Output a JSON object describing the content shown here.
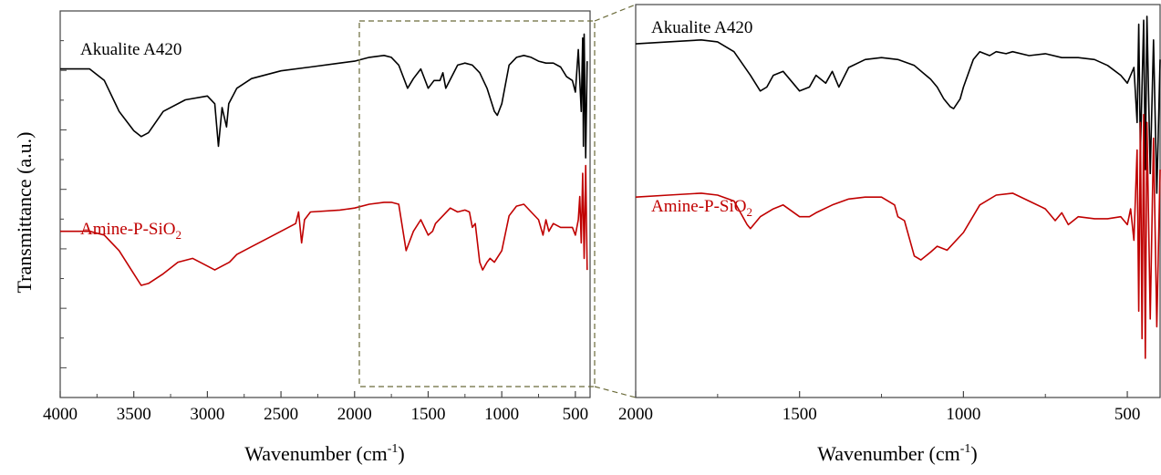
{
  "chart_data": [
    {
      "type": "line",
      "ylabel": "Transmittance (a.u.)",
      "xlabel": "Wavenumber (cm",
      "xlabel_sup": "-1",
      "xlabel_end": ")",
      "xlim": [
        4000,
        400
      ],
      "xticks": [
        "4000",
        "3500",
        "3000",
        "2500",
        "2000",
        "1500",
        "1000",
        "500"
      ],
      "xtick_values": [
        4000,
        3500,
        3000,
        2500,
        2000,
        1500,
        1000,
        500
      ],
      "ylim": [
        0,
        100
      ],
      "grid": false,
      "series": [
        {
          "name": "Akualite A420",
          "color": "#000000",
          "x": [
            4000,
            3800,
            3700,
            3600,
            3500,
            3450,
            3400,
            3300,
            3150,
            3000,
            2950,
            2925,
            2900,
            2870,
            2855,
            2800,
            2700,
            2500,
            2300,
            2100,
            2000,
            1900,
            1800,
            1750,
            1700,
            1640,
            1600,
            1550,
            1500,
            1460,
            1420,
            1400,
            1380,
            1300,
            1250,
            1200,
            1150,
            1100,
            1050,
            1030,
            1000,
            950,
            900,
            850,
            800,
            750,
            700,
            650,
            600,
            560,
            520,
            500,
            480,
            460,
            450,
            445,
            440,
            430,
            420
          ],
          "y": [
            85,
            85,
            82,
            74,
            69,
            67.5,
            68.5,
            74,
            77,
            78,
            76,
            65,
            75,
            70,
            76,
            80,
            82.5,
            84.5,
            85.5,
            86.5,
            87,
            88,
            88.5,
            88,
            86,
            80,
            82.5,
            85,
            80,
            82,
            82,
            84,
            80,
            86,
            86.5,
            86,
            84,
            80,
            74,
            73,
            76,
            86,
            88,
            88.5,
            88,
            87,
            86.5,
            86.5,
            85.5,
            83,
            82,
            79,
            90,
            74,
            93,
            65,
            94,
            62,
            87
          ]
        },
        {
          "name": "Amine-P-SiO2",
          "name_prefix": "Amine-P-SiO",
          "name_sub": "2",
          "color": "#c00000",
          "x": [
            4000,
            3800,
            3700,
            3600,
            3500,
            3450,
            3400,
            3300,
            3200,
            3100,
            3000,
            2950,
            2900,
            2850,
            2800,
            2700,
            2600,
            2500,
            2400,
            2380,
            2360,
            2340,
            2300,
            2100,
            2000,
            1900,
            1800,
            1750,
            1700,
            1650,
            1600,
            1550,
            1500,
            1470,
            1450,
            1400,
            1350,
            1300,
            1250,
            1220,
            1200,
            1180,
            1150,
            1130,
            1100,
            1080,
            1050,
            1000,
            950,
            900,
            850,
            800,
            750,
            720,
            700,
            680,
            650,
            600,
            560,
            520,
            500,
            480,
            470,
            460,
            450,
            440,
            430,
            420
          ],
          "y": [
            43,
            43,
            42,
            38,
            32,
            29,
            29.5,
            32,
            35,
            36,
            34,
            33,
            34,
            35,
            37,
            39,
            41,
            43,
            45,
            48,
            40,
            46,
            48,
            48.5,
            49,
            50,
            50.5,
            50.5,
            50,
            38,
            43,
            46,
            42,
            43,
            45,
            47,
            49,
            48,
            48.5,
            48,
            44,
            45,
            35,
            33,
            35,
            36,
            35,
            38,
            47,
            49.5,
            50,
            48,
            46,
            42,
            46,
            43,
            45,
            44,
            44,
            44,
            42,
            46,
            52,
            40,
            58,
            36,
            60,
            33
          ]
        }
      ]
    },
    {
      "type": "line",
      "xlabel": "Wavenumber (cm",
      "xlabel_sup": "-1",
      "xlabel_end": ")",
      "xlim": [
        2000,
        400
      ],
      "xticks": [
        "2000",
        "1500",
        "1000",
        "500"
      ],
      "xtick_values": [
        2000,
        1500,
        1000,
        500
      ],
      "ylim": [
        0,
        100
      ],
      "grid": false,
      "series": [
        {
          "name": "Akualite A420",
          "color": "#000000",
          "x": [
            2000,
            1900,
            1800,
            1750,
            1700,
            1650,
            1620,
            1600,
            1580,
            1550,
            1520,
            1500,
            1470,
            1450,
            1420,
            1400,
            1390,
            1380,
            1350,
            1300,
            1250,
            1200,
            1150,
            1100,
            1080,
            1060,
            1040,
            1030,
            1010,
            1000,
            970,
            950,
            920,
            900,
            870,
            850,
            800,
            750,
            700,
            650,
            600,
            560,
            520,
            500,
            480,
            470,
            465,
            460,
            450,
            445,
            440,
            430,
            420,
            410,
            400
          ],
          "y": [
            90,
            90.5,
            91,
            90.5,
            88,
            82,
            78,
            79,
            82,
            83,
            80,
            78,
            79,
            82,
            80,
            83,
            81,
            79,
            84,
            86,
            86.5,
            86,
            84.5,
            81,
            79,
            76,
            74,
            73.5,
            76,
            79,
            86,
            88,
            87,
            88,
            87.5,
            88,
            87,
            87.5,
            86.5,
            86.5,
            86,
            84.5,
            82,
            80,
            84,
            70,
            95,
            62,
            96,
            58,
            97,
            57,
            91,
            52,
            86
          ]
        },
        {
          "name": "Amine-P-SiO2",
          "name_prefix": "Amine-P-SiO",
          "name_sub": "2",
          "color": "#c00000",
          "x": [
            2000,
            1900,
            1800,
            1750,
            1700,
            1660,
            1650,
            1620,
            1580,
            1550,
            1500,
            1470,
            1450,
            1400,
            1350,
            1300,
            1250,
            1210,
            1200,
            1180,
            1150,
            1130,
            1100,
            1080,
            1050,
            1000,
            950,
            900,
            850,
            800,
            750,
            720,
            700,
            680,
            650,
            600,
            560,
            520,
            500,
            490,
            480,
            470,
            465,
            460,
            455,
            450,
            445,
            440,
            430,
            420,
            410,
            400
          ],
          "y": [
            51,
            51.5,
            52,
            51.5,
            50,
            44,
            43,
            46,
            48,
            49,
            46,
            46,
            47,
            49,
            50.5,
            51,
            51,
            49,
            46,
            45,
            36,
            35,
            37,
            38.5,
            37.5,
            42,
            49,
            51.5,
            52,
            50,
            48,
            45,
            47,
            44,
            46,
            45.5,
            45.5,
            46,
            44,
            48,
            40,
            63,
            22,
            70,
            15,
            72,
            10,
            70,
            20,
            66,
            18,
            58
          ]
        }
      ]
    }
  ]
}
